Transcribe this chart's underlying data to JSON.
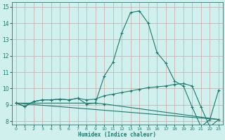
{
  "xlabel": "Humidex (Indice chaleur)",
  "xlim": [
    -0.5,
    23.5
  ],
  "ylim": [
    7.8,
    15.3
  ],
  "yticks": [
    8,
    9,
    10,
    11,
    12,
    13,
    14,
    15
  ],
  "xticks": [
    0,
    1,
    2,
    3,
    4,
    5,
    6,
    7,
    8,
    9,
    10,
    11,
    12,
    13,
    14,
    15,
    16,
    17,
    18,
    19,
    20,
    21,
    22,
    23
  ],
  "background_color": "#cff0ec",
  "grid_color": "#c8a8a8",
  "line_color": "#1a7a6e",
  "line1_x": [
    0,
    1,
    2,
    3,
    4,
    5,
    6,
    7,
    8,
    9,
    10,
    11,
    12,
    13,
    14,
    15,
    16,
    17,
    18,
    19,
    20,
    21,
    22,
    23
  ],
  "line1_y": [
    9.1,
    8.9,
    9.2,
    9.3,
    9.3,
    9.35,
    9.3,
    9.4,
    9.05,
    9.1,
    10.75,
    11.6,
    13.4,
    14.65,
    14.75,
    14.0,
    12.2,
    11.55,
    10.45,
    10.15,
    8.85,
    7.65,
    8.1,
    9.9
  ],
  "line2_x": [
    0,
    1,
    2,
    3,
    4,
    5,
    6,
    7,
    8,
    9,
    10,
    11,
    12,
    13,
    14,
    15,
    16,
    17,
    18,
    19,
    20,
    21,
    22,
    23
  ],
  "line2_y": [
    9.1,
    8.9,
    9.2,
    9.3,
    9.3,
    9.35,
    9.3,
    9.4,
    9.3,
    9.35,
    9.55,
    9.65,
    9.75,
    9.85,
    9.95,
    10.05,
    10.1,
    10.15,
    10.25,
    10.3,
    10.15,
    8.85,
    7.65,
    8.1
  ],
  "line3_x": [
    0,
    9,
    10,
    23
  ],
  "line3_y": [
    9.1,
    9.1,
    9.05,
    8.1
  ],
  "line4_x": [
    0,
    23
  ],
  "line4_y": [
    9.1,
    8.1
  ]
}
